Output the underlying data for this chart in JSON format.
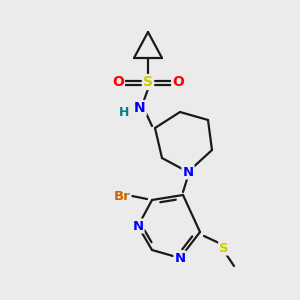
{
  "background_color": "#ebebeb",
  "bond_color": "#1a1a1a",
  "atom_colors": {
    "N": "#0000ff",
    "O": "#ff0000",
    "S_sulfonyl": "#cccc00",
    "S_thio": "#cccc00",
    "Br": "#cc6600",
    "H": "#008080",
    "C": "#1a1a1a"
  },
  "figsize": [
    3.0,
    3.0
  ],
  "dpi": 100
}
